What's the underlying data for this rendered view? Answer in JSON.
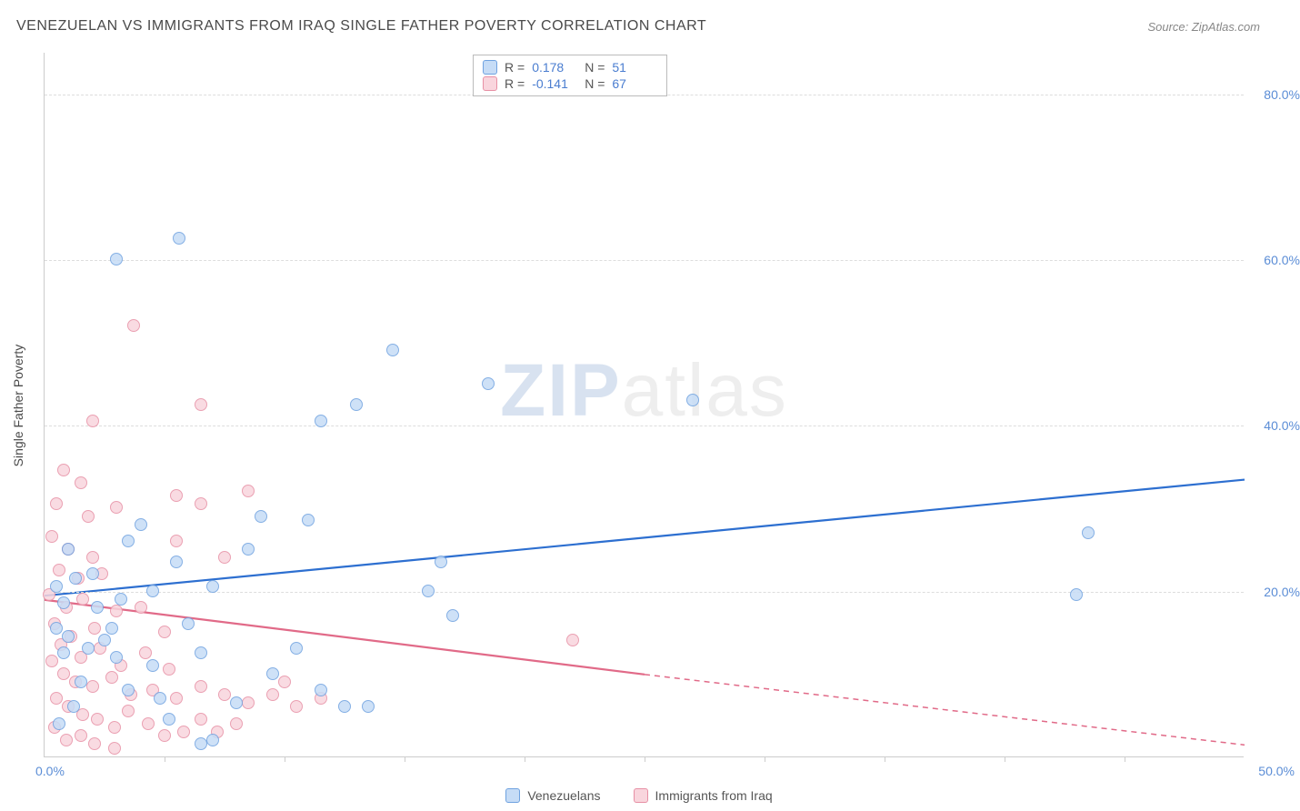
{
  "title": "VENEZUELAN VS IMMIGRANTS FROM IRAQ SINGLE FATHER POVERTY CORRELATION CHART",
  "source": "Source: ZipAtlas.com",
  "ylabel": "Single Father Poverty",
  "watermark_a": "ZIP",
  "watermark_b": "atlas",
  "chart": {
    "type": "scatter",
    "xlim": [
      0,
      50
    ],
    "ylim": [
      0,
      85
    ],
    "x_tick_marks": [
      5,
      10,
      15,
      20,
      25,
      30,
      35,
      40,
      45
    ],
    "x_ticks_labels": [
      {
        "val": 0,
        "label": "0.0%"
      },
      {
        "val": 50,
        "label": "50.0%"
      }
    ],
    "y_ticks": [
      {
        "val": 20,
        "label": "20.0%"
      },
      {
        "val": 40,
        "label": "40.0%"
      },
      {
        "val": 60,
        "label": "60.0%"
      },
      {
        "val": 80,
        "label": "80.0%"
      }
    ],
    "grid_color": "#dddddd",
    "axis_color": "#cccccc",
    "background_color": "#ffffff",
    "series": [
      {
        "name": "Venezuelans",
        "color_fill": "#c6dcf6",
        "color_stroke": "#6fa2e0",
        "R": "0.178",
        "N": "51",
        "trend": {
          "x1": 0,
          "y1": 19.5,
          "x2": 50,
          "y2": 33.5,
          "color": "#2d6fd0",
          "width": 2.2
        },
        "points": [
          [
            5.6,
            62.5
          ],
          [
            3.0,
            60.0
          ],
          [
            14.5,
            49.0
          ],
          [
            18.5,
            45.0
          ],
          [
            27.0,
            43.0
          ],
          [
            13.0,
            42.5
          ],
          [
            11.5,
            40.5
          ],
          [
            4.0,
            28.0
          ],
          [
            9.0,
            29.0
          ],
          [
            11.0,
            28.5
          ],
          [
            43.5,
            27.0
          ],
          [
            43.0,
            19.5
          ],
          [
            1.0,
            25.0
          ],
          [
            2.0,
            22.0
          ],
          [
            3.5,
            26.0
          ],
          [
            16.5,
            23.5
          ],
          [
            16.0,
            20.0
          ],
          [
            17.0,
            17.0
          ],
          [
            0.5,
            20.5
          ],
          [
            0.8,
            18.5
          ],
          [
            1.3,
            21.5
          ],
          [
            2.2,
            18.0
          ],
          [
            5.5,
            23.5
          ],
          [
            6.0,
            16.0
          ],
          [
            7.0,
            20.5
          ],
          [
            8.5,
            25.0
          ],
          [
            3.2,
            19.0
          ],
          [
            4.5,
            20.0
          ],
          [
            2.8,
            15.5
          ],
          [
            9.5,
            10.0
          ],
          [
            10.5,
            13.0
          ],
          [
            11.5,
            8.0
          ],
          [
            12.5,
            6.0
          ],
          [
            13.5,
            6.0
          ],
          [
            8.0,
            6.5
          ],
          [
            7.0,
            2.0
          ],
          [
            6.5,
            1.5
          ],
          [
            3.0,
            12.0
          ],
          [
            3.5,
            8.0
          ],
          [
            2.5,
            14.0
          ],
          [
            4.5,
            11.0
          ],
          [
            1.5,
            9.0
          ],
          [
            0.8,
            12.5
          ],
          [
            0.5,
            15.5
          ],
          [
            1.0,
            14.5
          ],
          [
            1.8,
            13.0
          ],
          [
            4.8,
            7.0
          ],
          [
            5.2,
            4.5
          ],
          [
            6.5,
            12.5
          ],
          [
            1.2,
            6.0
          ],
          [
            0.6,
            4.0
          ]
        ]
      },
      {
        "name": "Immigrants from Iraq",
        "color_fill": "#f9d5dd",
        "color_stroke": "#e790a5",
        "R": "-0.141",
        "N": "67",
        "trend": {
          "x1": 0,
          "y1": 19.0,
          "x2": 25,
          "y2": 10.0,
          "solid_frac": 0.5,
          "to_x": 50,
          "to_y": 1.5,
          "color": "#e16a88",
          "width": 2.2
        },
        "points": [
          [
            3.7,
            52.0
          ],
          [
            2.0,
            40.5
          ],
          [
            6.5,
            42.5
          ],
          [
            0.8,
            34.5
          ],
          [
            1.5,
            33.0
          ],
          [
            5.5,
            31.5
          ],
          [
            6.5,
            30.5
          ],
          [
            8.5,
            32.0
          ],
          [
            0.5,
            30.5
          ],
          [
            1.8,
            29.0
          ],
          [
            3.0,
            30.0
          ],
          [
            5.5,
            26.0
          ],
          [
            7.5,
            24.0
          ],
          [
            0.3,
            26.5
          ],
          [
            1.0,
            25.0
          ],
          [
            2.0,
            24.0
          ],
          [
            0.6,
            22.5
          ],
          [
            1.4,
            21.5
          ],
          [
            2.4,
            22.0
          ],
          [
            0.2,
            19.5
          ],
          [
            0.9,
            18.0
          ],
          [
            1.6,
            19.0
          ],
          [
            3.0,
            17.5
          ],
          [
            4.0,
            18.0
          ],
          [
            5.0,
            15.0
          ],
          [
            0.4,
            16.0
          ],
          [
            1.1,
            14.5
          ],
          [
            2.1,
            15.5
          ],
          [
            0.7,
            13.5
          ],
          [
            1.5,
            12.0
          ],
          [
            2.3,
            13.0
          ],
          [
            3.2,
            11.0
          ],
          [
            4.2,
            12.5
          ],
          [
            5.2,
            10.5
          ],
          [
            0.3,
            11.5
          ],
          [
            0.8,
            10.0
          ],
          [
            1.3,
            9.0
          ],
          [
            2.0,
            8.5
          ],
          [
            2.8,
            9.5
          ],
          [
            3.6,
            7.5
          ],
          [
            4.5,
            8.0
          ],
          [
            5.5,
            7.0
          ],
          [
            6.5,
            8.5
          ],
          [
            7.5,
            7.5
          ],
          [
            8.5,
            6.5
          ],
          [
            9.5,
            7.5
          ],
          [
            10.5,
            6.0
          ],
          [
            11.5,
            7.0
          ],
          [
            10.0,
            9.0
          ],
          [
            0.5,
            7.0
          ],
          [
            1.0,
            6.0
          ],
          [
            1.6,
            5.0
          ],
          [
            2.2,
            4.5
          ],
          [
            2.9,
            3.5
          ],
          [
            3.5,
            5.5
          ],
          [
            4.3,
            4.0
          ],
          [
            5.0,
            2.5
          ],
          [
            5.8,
            3.0
          ],
          [
            6.5,
            4.5
          ],
          [
            7.2,
            3.0
          ],
          [
            8.0,
            4.0
          ],
          [
            0.4,
            3.5
          ],
          [
            0.9,
            2.0
          ],
          [
            1.5,
            2.5
          ],
          [
            2.1,
            1.5
          ],
          [
            2.9,
            1.0
          ],
          [
            22.0,
            14.0
          ]
        ]
      }
    ]
  },
  "legend_stats": {
    "r_label": "R =",
    "n_label": "N ="
  },
  "tick_label_color": "#5b8dd6",
  "text_color": "#4a4a4a"
}
